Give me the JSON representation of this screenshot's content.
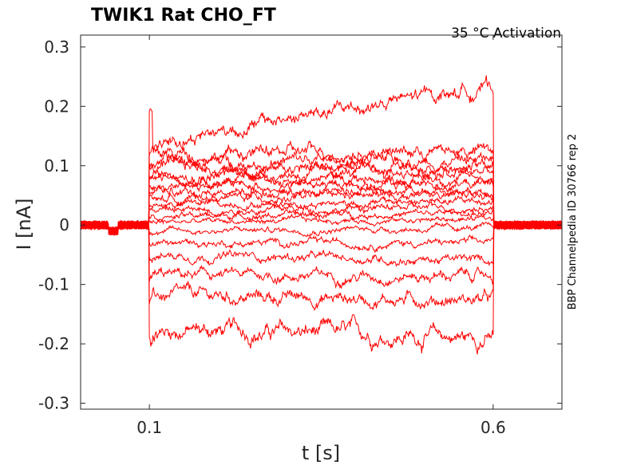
{
  "chart_data": {
    "type": "line",
    "title": "TWIK1  Rat  CHO_FT",
    "annotation": "35 °C  Activation",
    "side_label": "BBP Channelpedia ID 30766 rep 2",
    "xlabel": "t [s]",
    "ylabel": "I [nA]",
    "xlim": [
      0.0,
      0.7
    ],
    "ylim": [
      -0.31,
      0.32
    ],
    "x_ticks": [
      0.1,
      0.6
    ],
    "x_tick_labels": [
      "0.1",
      "0.6"
    ],
    "y_ticks": [
      0.3,
      0.2,
      0.1,
      0,
      -0.1,
      -0.2,
      -0.3
    ],
    "y_tick_labels": [
      "0.3",
      "0.2",
      "0.1",
      "0",
      "-0.1",
      "-0.2",
      "-0.3"
    ],
    "grid": false,
    "line_color": "#ff0000",
    "pulse": {
      "start": 0.1,
      "end": 0.6
    },
    "series": [
      {
        "start_level": -0.175,
        "end_level": -0.19
      },
      {
        "start_level": -0.12,
        "end_level": -0.125
      },
      {
        "start_level": -0.085,
        "end_level": -0.085
      },
      {
        "start_level": -0.05,
        "end_level": -0.06
      },
      {
        "start_level": -0.03,
        "end_level": -0.03
      },
      {
        "start_level": -0.01,
        "end_level": -0.005
      },
      {
        "start_level": 0.005,
        "end_level": 0.01
      },
      {
        "start_level": 0.015,
        "end_level": 0.02
      },
      {
        "start_level": 0.025,
        "end_level": 0.03
      },
      {
        "start_level": 0.035,
        "end_level": 0.04
      },
      {
        "start_level": 0.045,
        "end_level": 0.05
      },
      {
        "start_level": 0.055,
        "end_level": 0.06
      },
      {
        "start_level": 0.065,
        "end_level": 0.07
      },
      {
        "start_level": 0.075,
        "end_level": 0.08
      },
      {
        "start_level": 0.085,
        "end_level": 0.09
      },
      {
        "start_level": 0.095,
        "end_level": 0.1
      },
      {
        "start_level": 0.105,
        "end_level": 0.11
      },
      {
        "start_level": 0.12,
        "end_level": 0.125
      },
      {
        "start_level": 0.14,
        "end_level": 0.235
      }
    ]
  }
}
